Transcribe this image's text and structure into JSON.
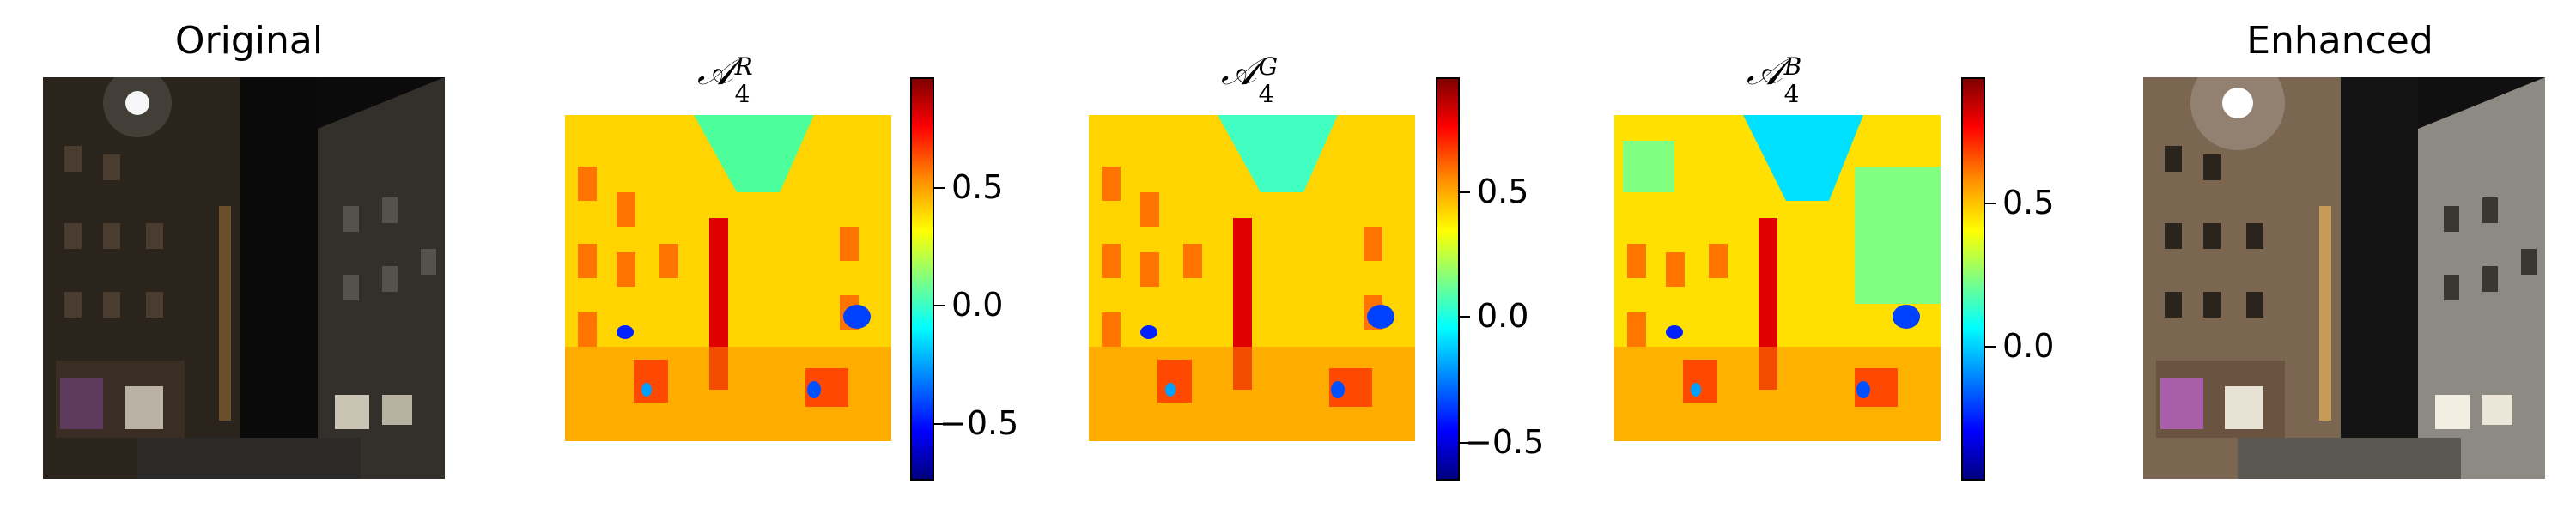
{
  "figure": {
    "original_title": "Original",
    "enhanced_title": "Enhanced",
    "maps": [
      {
        "symbol": "𝒜",
        "sub": "4",
        "sup": "R",
        "ticks": [
          "0.5",
          "0.0",
          "−0.5"
        ]
      },
      {
        "symbol": "𝒜",
        "sub": "4",
        "sup": "G",
        "ticks": [
          "0.5",
          "0.0",
          "−0.5"
        ]
      },
      {
        "symbol": "𝒜",
        "sub": "4",
        "sup": "B",
        "ticks": [
          "0.5",
          "0.0"
        ]
      }
    ]
  }
}
